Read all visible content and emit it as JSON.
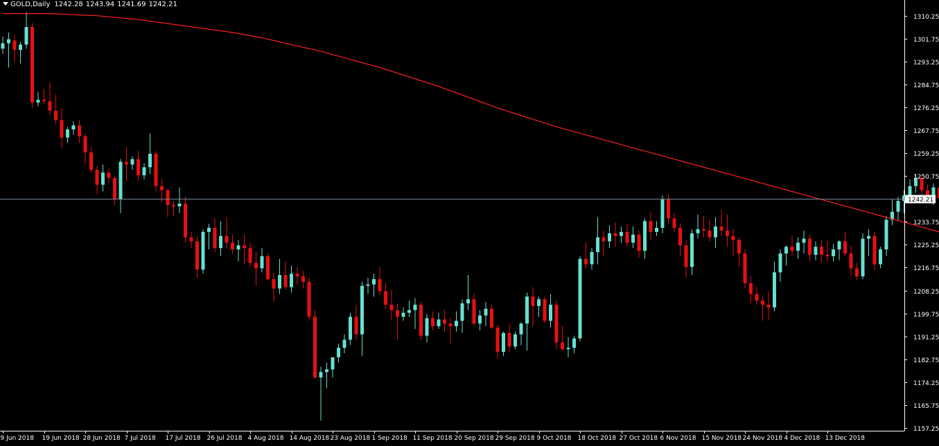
{
  "header": {
    "symbol": "GOLD,Daily",
    "open": "1242.28",
    "high": "1243.94",
    "low": "1241.69",
    "close": "1242.21"
  },
  "colors": {
    "background": "#000000",
    "frame": "#ffffff",
    "bull": "#66e0d0",
    "bear": "#e81010",
    "moving_average": "#ff2020",
    "price_line": "#7a8a9c",
    "price_tag_bg": "#ffffff",
    "price_tag_text": "#000000"
  },
  "chart_data": {
    "type": "candlestick",
    "symbol": "GOLD",
    "timeframe": "Daily",
    "ylim": [
      1157.25,
      1314.5
    ],
    "y_ticks": [
      "1310.25",
      "1301.75",
      "1293.25",
      "1284.75",
      "1276.25",
      "1267.75",
      "1259.25",
      "1250.75",
      "1233.75",
      "1225.25",
      "1216.75",
      "1208.25",
      "1199.75",
      "1191.25",
      "1182.75",
      "1174.25",
      "1165.75",
      "1157.25"
    ],
    "x_labels": [
      {
        "index": 0,
        "label": "9 Jun 2018"
      },
      {
        "index": 7,
        "label": "19 Jun 2018"
      },
      {
        "index": 14,
        "label": "28 Jun 2018"
      },
      {
        "index": 21,
        "label": "7 Jul 2018"
      },
      {
        "index": 28,
        "label": "17 Jul 2018"
      },
      {
        "index": 35,
        "label": "26 Jul 2018"
      },
      {
        "index": 42,
        "label": "4 Aug 2018"
      },
      {
        "index": 49,
        "label": "14 Aug 2018"
      },
      {
        "index": 56,
        "label": "23 Aug 2018"
      },
      {
        "index": 63,
        "label": "1 Sep 2018"
      },
      {
        "index": 70,
        "label": "11 Sep 2018"
      },
      {
        "index": 77,
        "label": "20 Sep 2018"
      },
      {
        "index": 84,
        "label": "29 Sep 2018"
      },
      {
        "index": 91,
        "label": "9 Oct 2018"
      },
      {
        "index": 98,
        "label": "18 Oct 2018"
      },
      {
        "index": 105,
        "label": "27 Oct 2018"
      },
      {
        "index": 112,
        "label": "6 Nov 2018"
      },
      {
        "index": 119,
        "label": "15 Nov 2018"
      },
      {
        "index": 126,
        "label": "24 Nov 2018"
      },
      {
        "index": 133,
        "label": "4 Dec 2018"
      },
      {
        "index": 140,
        "label": "13 Dec 2018"
      }
    ],
    "current_price": 1242.21,
    "current_price_label": "1242.21",
    "candles": [
      [
        1298.0,
        1302.5,
        1296.0,
        1300.0
      ],
      [
        1300.0,
        1304.0,
        1291.0,
        1301.5
      ],
      [
        1301.0,
        1303.0,
        1293.0,
        1297.5
      ],
      [
        1297.5,
        1300.5,
        1292.5,
        1299.5
      ],
      [
        1299.5,
        1311.5,
        1298.0,
        1306.0
      ],
      [
        1306.0,
        1307.5,
        1276.0,
        1278.0
      ],
      [
        1278.0,
        1282.0,
        1276.5,
        1279.0
      ],
      [
        1279.0,
        1283.0,
        1277.5,
        1278.5
      ],
      [
        1278.5,
        1285.5,
        1273.5,
        1275.0
      ],
      [
        1275.0,
        1281.0,
        1270.0,
        1271.5
      ],
      [
        1271.5,
        1276.0,
        1261.0,
        1265.0
      ],
      [
        1265.0,
        1269.0,
        1263.0,
        1268.0
      ],
      [
        1268.0,
        1271.0,
        1266.0,
        1269.5
      ],
      [
        1269.5,
        1271.5,
        1263.0,
        1265.5
      ],
      [
        1265.5,
        1266.5,
        1255.0,
        1259.5
      ],
      [
        1259.5,
        1261.5,
        1252.0,
        1253.0
      ],
      [
        1253.0,
        1254.5,
        1244.0,
        1247.5
      ],
      [
        1247.5,
        1255.0,
        1245.0,
        1252.0
      ],
      [
        1252.0,
        1253.5,
        1248.0,
        1250.0
      ],
      [
        1250.0,
        1251.0,
        1240.0,
        1242.0
      ],
      [
        1242.0,
        1257.0,
        1237.0,
        1256.0
      ],
      [
        1256.0,
        1261.5,
        1249.0,
        1255.0
      ],
      [
        1255.0,
        1258.0,
        1253.0,
        1257.0
      ],
      [
        1257.0,
        1260.0,
        1249.0,
        1251.0
      ],
      [
        1251.0,
        1255.5,
        1249.5,
        1254.0
      ],
      [
        1254.0,
        1266.5,
        1251.5,
        1259.0
      ],
      [
        1259.0,
        1260.0,
        1245.0,
        1247.0
      ],
      [
        1247.0,
        1249.5,
        1241.0,
        1245.5
      ],
      [
        1245.5,
        1246.0,
        1235.5,
        1240.0
      ],
      [
        1240.0,
        1241.5,
        1236.0,
        1239.5
      ],
      [
        1239.5,
        1246.5,
        1237.0,
        1240.5
      ],
      [
        1240.5,
        1243.0,
        1226.0,
        1228.0
      ],
      [
        1228.0,
        1230.0,
        1224.0,
        1226.5
      ],
      [
        1226.5,
        1228.5,
        1213.0,
        1216.0
      ],
      [
        1216.0,
        1231.0,
        1214.5,
        1230.0
      ],
      [
        1230.0,
        1233.0,
        1223.5,
        1231.5
      ],
      [
        1231.5,
        1235.0,
        1222.5,
        1224.0
      ],
      [
        1224.0,
        1234.0,
        1221.0,
        1228.5
      ],
      [
        1228.5,
        1235.5,
        1224.0,
        1226.0
      ],
      [
        1226.0,
        1229.0,
        1222.0,
        1223.5
      ],
      [
        1223.5,
        1227.0,
        1219.0,
        1225.0
      ],
      [
        1225.0,
        1229.0,
        1218.0,
        1224.0
      ],
      [
        1224.0,
        1226.0,
        1217.0,
        1218.5
      ],
      [
        1218.5,
        1222.5,
        1210.0,
        1216.5
      ],
      [
        1216.5,
        1224.0,
        1215.0,
        1221.0
      ],
      [
        1221.0,
        1222.0,
        1212.0,
        1212.5
      ],
      [
        1212.5,
        1215.0,
        1204.0,
        1209.0
      ],
      [
        1209.0,
        1220.0,
        1207.0,
        1214.0
      ],
      [
        1214.0,
        1219.0,
        1208.5,
        1209.5
      ],
      [
        1209.5,
        1217.5,
        1207.5,
        1214.5
      ],
      [
        1214.5,
        1217.0,
        1210.5,
        1213.5
      ],
      [
        1213.5,
        1215.5,
        1209.0,
        1211.5
      ],
      [
        1211.5,
        1213.0,
        1197.0,
        1198.5
      ],
      [
        1198.5,
        1201.0,
        1175.5,
        1176.0
      ],
      [
        1176.0,
        1180.0,
        1160.0,
        1178.0
      ],
      [
        1178.0,
        1181.5,
        1172.0,
        1179.0
      ],
      [
        1179.0,
        1183.0,
        1176.0,
        1183.5
      ],
      [
        1183.5,
        1188.5,
        1181.5,
        1187.0
      ],
      [
        1187.0,
        1192.0,
        1185.0,
        1190.0
      ],
      [
        1190.0,
        1200.0,
        1188.0,
        1198.5
      ],
      [
        1198.5,
        1203.0,
        1190.0,
        1192.0
      ],
      [
        1192.0,
        1211.5,
        1184.0,
        1210.0
      ],
      [
        1210.0,
        1213.0,
        1207.0,
        1210.5
      ],
      [
        1210.5,
        1214.5,
        1206.0,
        1212.5
      ],
      [
        1212.5,
        1217.0,
        1206.5,
        1208.0
      ],
      [
        1208.0,
        1211.0,
        1201.5,
        1203.0
      ],
      [
        1203.0,
        1208.5,
        1197.5,
        1201.0
      ],
      [
        1201.0,
        1203.5,
        1190.0,
        1198.5
      ],
      [
        1198.5,
        1202.0,
        1197.0,
        1200.0
      ],
      [
        1200.0,
        1204.5,
        1198.5,
        1201.0
      ],
      [
        1201.0,
        1205.5,
        1194.0,
        1203.0
      ],
      [
        1203.0,
        1204.0,
        1190.0,
        1191.5
      ],
      [
        1191.5,
        1199.5,
        1189.0,
        1198.0
      ],
      [
        1198.0,
        1200.5,
        1193.5,
        1195.0
      ],
      [
        1195.0,
        1200.0,
        1194.0,
        1197.5
      ],
      [
        1197.5,
        1201.0,
        1193.0,
        1196.0
      ],
      [
        1196.0,
        1198.0,
        1188.5,
        1195.0
      ],
      [
        1195.0,
        1200.5,
        1193.0,
        1197.0
      ],
      [
        1197.0,
        1205.0,
        1192.5,
        1203.5
      ],
      [
        1203.5,
        1214.0,
        1201.0,
        1205.0
      ],
      [
        1205.0,
        1207.0,
        1195.0,
        1196.0
      ],
      [
        1196.0,
        1201.0,
        1193.5,
        1199.0
      ],
      [
        1199.0,
        1204.0,
        1195.0,
        1201.5
      ],
      [
        1201.5,
        1203.0,
        1194.0,
        1194.5
      ],
      [
        1194.5,
        1195.5,
        1183.0,
        1185.5
      ],
      [
        1185.5,
        1193.0,
        1184.0,
        1192.5
      ],
      [
        1192.5,
        1196.0,
        1185.5,
        1187.5
      ],
      [
        1187.5,
        1193.0,
        1186.5,
        1192.0
      ],
      [
        1192.0,
        1196.5,
        1188.0,
        1196.0
      ],
      [
        1196.0,
        1207.5,
        1186.0,
        1206.0
      ],
      [
        1206.0,
        1209.5,
        1195.0,
        1202.5
      ],
      [
        1202.5,
        1206.0,
        1198.5,
        1205.0
      ],
      [
        1205.0,
        1206.0,
        1196.0,
        1197.0
      ],
      [
        1197.0,
        1207.0,
        1194.5,
        1203.0
      ],
      [
        1203.0,
        1204.5,
        1186.5,
        1189.0
      ],
      [
        1189.0,
        1195.0,
        1186.0,
        1186.5
      ],
      [
        1186.5,
        1191.0,
        1183.5,
        1187.0
      ],
      [
        1187.0,
        1191.5,
        1185.0,
        1190.5
      ],
      [
        1190.5,
        1221.0,
        1189.5,
        1220.0
      ],
      [
        1220.0,
        1226.0,
        1216.5,
        1218.0
      ],
      [
        1218.0,
        1224.0,
        1216.0,
        1222.5
      ],
      [
        1222.5,
        1235.5,
        1218.0,
        1228.0
      ],
      [
        1228.0,
        1230.5,
        1221.0,
        1226.5
      ],
      [
        1226.5,
        1232.5,
        1224.0,
        1229.5
      ],
      [
        1229.5,
        1233.5,
        1224.5,
        1228.5
      ],
      [
        1228.5,
        1232.0,
        1226.0,
        1230.0
      ],
      [
        1230.0,
        1233.0,
        1224.5,
        1226.0
      ],
      [
        1226.0,
        1232.0,
        1224.0,
        1229.0
      ],
      [
        1229.0,
        1230.5,
        1220.5,
        1223.0
      ],
      [
        1223.0,
        1235.0,
        1220.0,
        1234.0
      ],
      [
        1234.0,
        1237.5,
        1227.0,
        1230.0
      ],
      [
        1230.0,
        1234.0,
        1228.5,
        1231.5
      ],
      [
        1231.5,
        1243.5,
        1229.5,
        1242.0
      ],
      [
        1242.0,
        1244.0,
        1233.0,
        1235.0
      ],
      [
        1235.0,
        1237.0,
        1230.0,
        1231.5
      ],
      [
        1231.5,
        1233.0,
        1221.0,
        1225.0
      ],
      [
        1225.0,
        1227.0,
        1213.0,
        1217.0
      ],
      [
        1217.0,
        1231.0,
        1214.0,
        1229.5
      ],
      [
        1229.5,
        1236.5,
        1227.5,
        1231.0
      ],
      [
        1231.0,
        1236.0,
        1228.0,
        1230.5
      ],
      [
        1230.5,
        1234.5,
        1226.5,
        1228.0
      ],
      [
        1228.0,
        1235.5,
        1224.0,
        1232.0
      ],
      [
        1232.0,
        1238.0,
        1228.5,
        1230.5
      ],
      [
        1230.5,
        1236.5,
        1224.5,
        1228.5
      ],
      [
        1228.5,
        1231.0,
        1221.0,
        1227.0
      ],
      [
        1227.0,
        1228.0,
        1217.0,
        1222.0
      ],
      [
        1222.0,
        1223.5,
        1209.0,
        1211.0
      ],
      [
        1211.0,
        1213.5,
        1203.5,
        1207.0
      ],
      [
        1207.0,
        1209.5,
        1203.0,
        1204.5
      ],
      [
        1204.5,
        1206.0,
        1197.0,
        1203.0
      ],
      [
        1203.0,
        1208.0,
        1197.5,
        1202.0
      ],
      [
        1202.0,
        1219.0,
        1200.5,
        1215.0
      ],
      [
        1215.0,
        1223.5,
        1211.5,
        1222.0
      ],
      [
        1222.0,
        1225.0,
        1217.5,
        1224.5
      ],
      [
        1224.5,
        1228.5,
        1221.0,
        1223.0
      ],
      [
        1223.0,
        1228.0,
        1220.0,
        1226.0
      ],
      [
        1226.0,
        1230.5,
        1222.0,
        1227.5
      ],
      [
        1227.5,
        1229.0,
        1219.0,
        1221.5
      ],
      [
        1221.5,
        1226.5,
        1219.5,
        1224.5
      ],
      [
        1224.5,
        1227.0,
        1218.5,
        1221.5
      ],
      [
        1221.5,
        1226.5,
        1219.0,
        1221.0
      ],
      [
        1221.0,
        1225.5,
        1219.0,
        1223.5
      ],
      [
        1223.5,
        1227.0,
        1219.5,
        1226.5
      ],
      [
        1226.5,
        1230.0,
        1221.0,
        1222.0
      ],
      [
        1222.0,
        1225.0,
        1214.0,
        1216.5
      ],
      [
        1216.5,
        1218.5,
        1212.0,
        1213.5
      ],
      [
        1213.5,
        1229.5,
        1212.5,
        1227.5
      ],
      [
        1227.5,
        1231.0,
        1221.0,
        1228.5
      ],
      [
        1228.5,
        1230.0,
        1216.0,
        1218.0
      ],
      [
        1218.0,
        1224.5,
        1216.5,
        1223.5
      ],
      [
        1223.5,
        1236.0,
        1221.0,
        1234.5
      ],
      [
        1234.5,
        1242.0,
        1232.5,
        1237.5
      ],
      [
        1237.5,
        1243.0,
        1234.0,
        1241.5
      ],
      [
        1241.5,
        1245.5,
        1237.0,
        1243.5
      ],
      [
        1243.5,
        1249.5,
        1241.0,
        1247.0
      ],
      [
        1247.0,
        1251.5,
        1244.5,
        1250.0
      ],
      [
        1250.0,
        1250.5,
        1243.0,
        1245.5
      ],
      [
        1245.5,
        1247.5,
        1242.5,
        1243.0
      ],
      [
        1243.0,
        1248.0,
        1240.0,
        1246.5
      ],
      [
        1246.5,
        1247.5,
        1240.0,
        1242.5
      ],
      [
        1242.5,
        1243.5,
        1241.5,
        1242.0
      ]
    ],
    "moving_average": [
      1311.0,
      1311.0,
      1311.0,
      1311.0,
      1311.0,
      1311.0,
      1311.0,
      1311.0,
      1311.0,
      1310.9,
      1310.8,
      1310.7,
      1310.6,
      1310.5,
      1310.4,
      1310.3,
      1310.2,
      1310.0,
      1309.8,
      1309.6,
      1309.4,
      1309.2,
      1309.0,
      1308.8,
      1308.5,
      1308.2,
      1307.9,
      1307.6,
      1307.3,
      1307.0,
      1306.7,
      1306.4,
      1306.1,
      1305.8,
      1305.5,
      1305.2,
      1304.9,
      1304.6,
      1304.3,
      1304.0,
      1303.6,
      1303.2,
      1302.8,
      1302.4,
      1302.0,
      1301.5,
      1301.0,
      1300.5,
      1300.0,
      1299.5,
      1299.0,
      1298.5,
      1298.0,
      1297.5,
      1297.0,
      1296.4,
      1295.8,
      1295.2,
      1294.6,
      1294.0,
      1293.4,
      1292.8,
      1292.2,
      1291.6,
      1291.0,
      1290.3,
      1289.6,
      1288.9,
      1288.2,
      1287.5,
      1286.8,
      1286.1,
      1285.4,
      1284.7,
      1284.0,
      1283.2,
      1282.4,
      1281.6,
      1280.8,
      1280.0,
      1279.2,
      1278.4,
      1277.6,
      1276.8,
      1276.0,
      1275.3,
      1274.6,
      1273.9,
      1273.2,
      1272.5,
      1271.8,
      1271.1,
      1270.4,
      1269.7,
      1269.0,
      1268.4,
      1267.8,
      1267.2,
      1266.6,
      1266.0,
      1265.4,
      1264.8,
      1264.2,
      1263.6,
      1263.0,
      1262.4,
      1261.8,
      1261.2,
      1260.6,
      1260.0,
      1259.4,
      1258.8,
      1258.2,
      1257.6,
      1257.0,
      1256.4,
      1255.8,
      1255.2,
      1254.6,
      1254.0,
      1253.4,
      1252.8,
      1252.2,
      1251.6,
      1251.0,
      1250.4,
      1249.8,
      1249.2,
      1248.6,
      1248.0,
      1247.4,
      1246.8,
      1246.2,
      1245.6,
      1245.0,
      1244.4,
      1243.8,
      1243.2,
      1242.6,
      1242.0,
      1241.4,
      1240.8,
      1240.2,
      1239.6,
      1239.0,
      1238.4,
      1237.8,
      1237.2,
      1236.6,
      1236.0,
      1235.4,
      1234.8,
      1234.2,
      1233.6,
      1233.0,
      1232.4,
      1231.8,
      1231.2,
      1230.6,
      1230.0,
      1229.4,
      1228.8,
      1228.2,
      1227.6,
      1227.0,
      1226.4,
      1225.8,
      1225.2,
      1224.6,
      1224.0
    ]
  }
}
